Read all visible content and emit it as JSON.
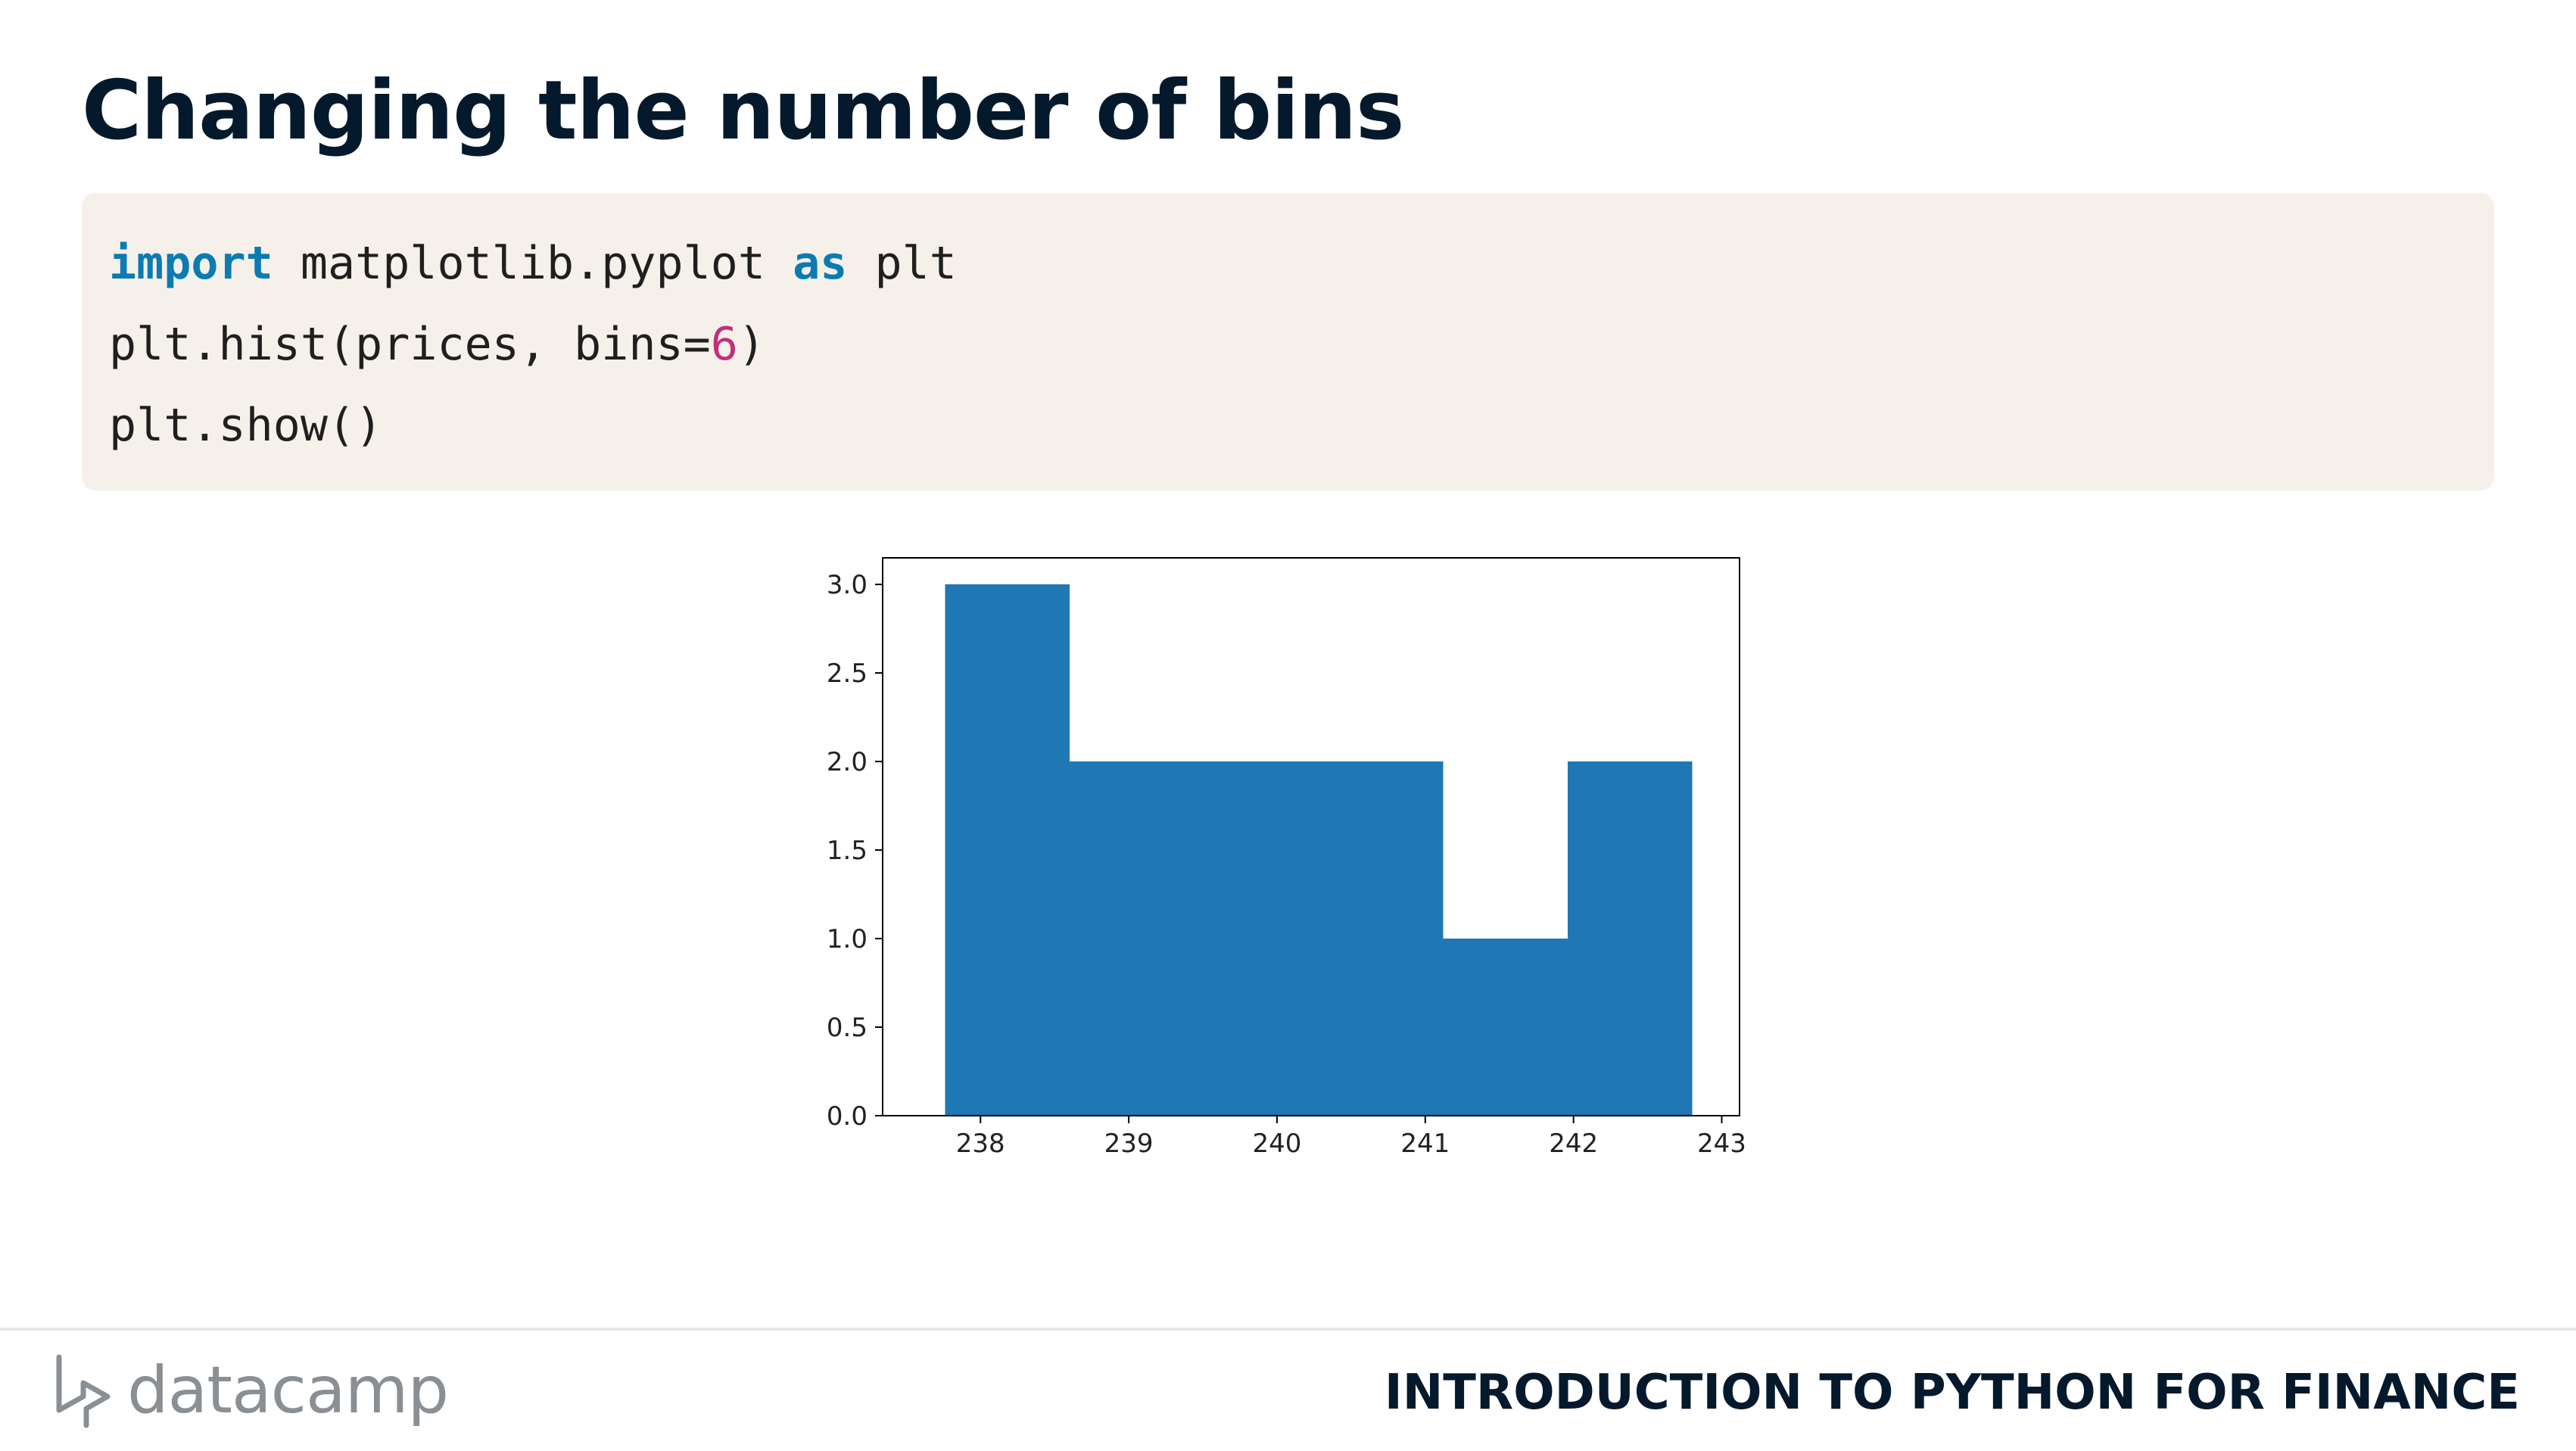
{
  "slide": {
    "title": "Changing the number of bins"
  },
  "code": {
    "lines": [
      {
        "kw1": "import",
        "mid": " matplotlib.pyplot ",
        "kw2": "as",
        "tail": " plt"
      },
      {
        "pre": "plt.hist(prices, bins=",
        "num": "6",
        "post": ")"
      },
      {
        "text": "plt.show()"
      }
    ]
  },
  "chart_data": {
    "type": "bar",
    "bin_edges": [
      237.76,
      238.6,
      239.44,
      240.28,
      241.12,
      241.96,
      242.8
    ],
    "counts": [
      3,
      2,
      2,
      2,
      1,
      2
    ],
    "xlim": [
      237.34,
      243.12
    ],
    "ylim": [
      0,
      3.15
    ],
    "xticks": [
      238,
      239,
      240,
      241,
      242,
      243
    ],
    "xtick_labels": [
      "238",
      "239",
      "240",
      "241",
      "242",
      "243"
    ],
    "yticks": [
      0,
      0.5,
      1,
      1.5,
      2,
      2.5,
      3
    ],
    "ytick_labels": [
      "0.0",
      "0.5",
      "1.0",
      "1.5",
      "2.0",
      "2.5",
      "3.0"
    ],
    "bar_color": "#1f77b4",
    "grid": false
  },
  "footer": {
    "brand": "datacamp",
    "course": "INTRODUCTION TO PYTHON FOR FINANCE"
  },
  "colors": {
    "title": "#05192d",
    "code_background": "#f5f1ea",
    "keyword": "#0b7bb3",
    "number": "#c0307a",
    "logo": "#8a8f94"
  }
}
